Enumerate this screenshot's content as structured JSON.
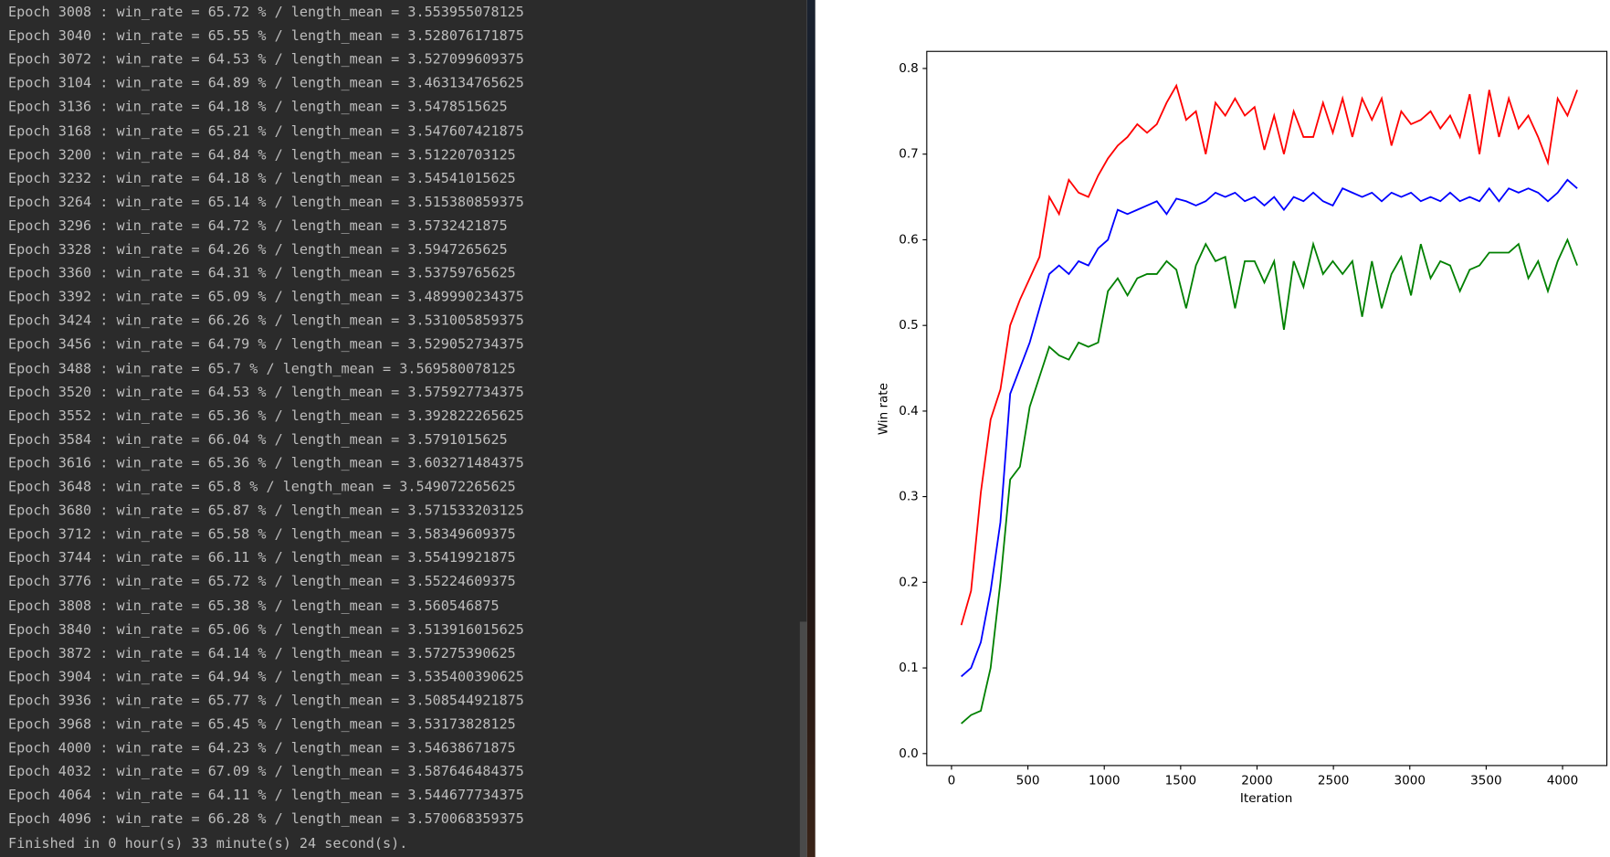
{
  "terminal": {
    "lines": [
      "Epoch 3008 : win_rate = 65.72 % / length_mean = 3.553955078125",
      "Epoch 3040 : win_rate = 65.55 % / length_mean = 3.528076171875",
      "Epoch 3072 : win_rate = 64.53 % / length_mean = 3.527099609375",
      "Epoch 3104 : win_rate = 64.89 % / length_mean = 3.463134765625",
      "Epoch 3136 : win_rate = 64.18 % / length_mean = 3.5478515625",
      "Epoch 3168 : win_rate = 65.21 % / length_mean = 3.547607421875",
      "Epoch 3200 : win_rate = 64.84 % / length_mean = 3.51220703125",
      "Epoch 3232 : win_rate = 64.18 % / length_mean = 3.54541015625",
      "Epoch 3264 : win_rate = 65.14 % / length_mean = 3.515380859375",
      "Epoch 3296 : win_rate = 64.72 % / length_mean = 3.5732421875",
      "Epoch 3328 : win_rate = 64.26 % / length_mean = 3.5947265625",
      "Epoch 3360 : win_rate = 64.31 % / length_mean = 3.53759765625",
      "Epoch 3392 : win_rate = 65.09 % / length_mean = 3.489990234375",
      "Epoch 3424 : win_rate = 66.26 % / length_mean = 3.531005859375",
      "Epoch 3456 : win_rate = 64.79 % / length_mean = 3.529052734375",
      "Epoch 3488 : win_rate = 65.7 % / length_mean = 3.569580078125",
      "Epoch 3520 : win_rate = 64.53 % / length_mean = 3.575927734375",
      "Epoch 3552 : win_rate = 65.36 % / length_mean = 3.392822265625",
      "Epoch 3584 : win_rate = 66.04 % / length_mean = 3.5791015625",
      "Epoch 3616 : win_rate = 65.36 % / length_mean = 3.603271484375",
      "Epoch 3648 : win_rate = 65.8 % / length_mean = 3.549072265625",
      "Epoch 3680 : win_rate = 65.87 % / length_mean = 3.571533203125",
      "Epoch 3712 : win_rate = 65.58 % / length_mean = 3.58349609375",
      "Epoch 3744 : win_rate = 66.11 % / length_mean = 3.55419921875",
      "Epoch 3776 : win_rate = 65.72 % / length_mean = 3.55224609375",
      "Epoch 3808 : win_rate = 65.38 % / length_mean = 3.560546875",
      "Epoch 3840 : win_rate = 65.06 % / length_mean = 3.513916015625",
      "Epoch 3872 : win_rate = 64.14 % / length_mean = 3.57275390625",
      "Epoch 3904 : win_rate = 64.94 % / length_mean = 3.535400390625",
      "Epoch 3936 : win_rate = 65.77 % / length_mean = 3.508544921875",
      "Epoch 3968 : win_rate = 65.45 % / length_mean = 3.53173828125",
      "Epoch 4000 : win_rate = 64.23 % / length_mean = 3.54638671875",
      "Epoch 4032 : win_rate = 67.09 % / length_mean = 3.587646484375",
      "Epoch 4064 : win_rate = 64.11 % / length_mean = 3.544677734375",
      "Epoch 4096 : win_rate = 66.28 % / length_mean = 3.570068359375",
      "Finished in 0 hour(s) 33 minute(s) 24 second(s)."
    ]
  },
  "chart_data": {
    "type": "line",
    "x_label": "Iteration",
    "y_label": "Win rate",
    "x": [
      64,
      128,
      192,
      256,
      320,
      384,
      448,
      512,
      576,
      640,
      704,
      768,
      832,
      896,
      960,
      1024,
      1088,
      1152,
      1216,
      1280,
      1344,
      1408,
      1472,
      1536,
      1600,
      1664,
      1728,
      1792,
      1856,
      1920,
      1984,
      2048,
      2112,
      2176,
      2240,
      2304,
      2368,
      2432,
      2496,
      2560,
      2624,
      2688,
      2752,
      2816,
      2880,
      2944,
      3008,
      3072,
      3136,
      3200,
      3264,
      3328,
      3392,
      3456,
      3520,
      3584,
      3648,
      3712,
      3776,
      3840,
      3904,
      3968,
      4032,
      4096
    ],
    "series": [
      {
        "color": "#ff0000",
        "values": [
          0.15,
          0.19,
          0.305,
          0.39,
          0.425,
          0.5,
          0.53,
          0.555,
          0.58,
          0.65,
          0.63,
          0.67,
          0.655,
          0.65,
          0.675,
          0.695,
          0.71,
          0.72,
          0.735,
          0.725,
          0.735,
          0.76,
          0.78,
          0.74,
          0.75,
          0.7,
          0.76,
          0.745,
          0.765,
          0.745,
          0.755,
          0.705,
          0.745,
          0.7,
          0.75,
          0.72,
          0.72,
          0.76,
          0.725,
          0.765,
          0.72,
          0.765,
          0.74,
          0.765,
          0.71,
          0.75,
          0.735,
          0.74,
          0.75,
          0.73,
          0.745,
          0.72,
          0.77,
          0.7,
          0.775,
          0.72,
          0.765,
          0.73,
          0.745,
          0.72,
          0.69,
          0.765,
          0.745,
          0.775
        ]
      },
      {
        "color": "#0000ff",
        "values": [
          0.09,
          0.1,
          0.13,
          0.19,
          0.27,
          0.42,
          0.45,
          0.48,
          0.52,
          0.56,
          0.57,
          0.56,
          0.575,
          0.57,
          0.59,
          0.6,
          0.635,
          0.63,
          0.635,
          0.64,
          0.645,
          0.63,
          0.648,
          0.645,
          0.64,
          0.645,
          0.655,
          0.65,
          0.655,
          0.645,
          0.65,
          0.64,
          0.65,
          0.635,
          0.65,
          0.645,
          0.655,
          0.645,
          0.64,
          0.66,
          0.655,
          0.65,
          0.655,
          0.645,
          0.655,
          0.65,
          0.655,
          0.645,
          0.65,
          0.645,
          0.655,
          0.645,
          0.65,
          0.645,
          0.66,
          0.645,
          0.66,
          0.655,
          0.66,
          0.655,
          0.645,
          0.655,
          0.67,
          0.66
        ]
      },
      {
        "color": "#008000",
        "values": [
          0.035,
          0.045,
          0.05,
          0.1,
          0.2,
          0.32,
          0.335,
          0.405,
          0.44,
          0.475,
          0.465,
          0.46,
          0.48,
          0.475,
          0.48,
          0.54,
          0.555,
          0.535,
          0.555,
          0.56,
          0.56,
          0.575,
          0.565,
          0.52,
          0.57,
          0.595,
          0.575,
          0.58,
          0.52,
          0.575,
          0.575,
          0.55,
          0.575,
          0.495,
          0.575,
          0.545,
          0.595,
          0.56,
          0.575,
          0.56,
          0.575,
          0.51,
          0.575,
          0.52,
          0.56,
          0.58,
          0.535,
          0.595,
          0.555,
          0.575,
          0.57,
          0.54,
          0.565,
          0.57,
          0.585,
          0.585,
          0.585,
          0.595,
          0.555,
          0.575,
          0.54,
          0.575,
          0.6,
          0.57
        ]
      }
    ],
    "xlim": [
      -162,
      4290
    ],
    "ylim": [
      -0.014,
      0.82
    ],
    "xticks": [
      0,
      500,
      1000,
      1500,
      2000,
      2500,
      3000,
      3500,
      4000
    ],
    "yticks": [
      {
        "value": 0,
        "label": "0.0"
      },
      0.1,
      0.2,
      0.3,
      0.4,
      0.5,
      0.6,
      0.7,
      0.8
    ]
  }
}
